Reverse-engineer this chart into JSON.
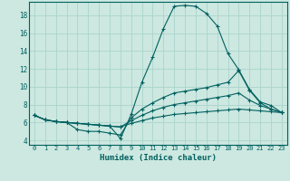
{
  "title": "",
  "xlabel": "Humidex (Indice chaleur)",
  "background_color": "#cce8e0",
  "grid_color": "#aad4cc",
  "line_color": "#006060",
  "xlim": [
    -0.5,
    23.5
  ],
  "ylim": [
    3.5,
    19.5
  ],
  "xticks": [
    0,
    1,
    2,
    3,
    4,
    5,
    6,
    7,
    8,
    9,
    10,
    11,
    12,
    13,
    14,
    15,
    16,
    17,
    18,
    19,
    20,
    21,
    22,
    23
  ],
  "yticks": [
    4,
    6,
    8,
    10,
    12,
    14,
    16,
    18
  ],
  "lines": [
    {
      "x": [
        0,
        1,
        2,
        3,
        4,
        5,
        6,
        7,
        8,
        9,
        10,
        11,
        12,
        13,
        14,
        15,
        16,
        17,
        18,
        19,
        20,
        21,
        22,
        23
      ],
      "y": [
        6.8,
        6.3,
        6.1,
        6.0,
        5.9,
        5.8,
        5.7,
        5.6,
        4.2,
        6.9,
        10.5,
        13.3,
        16.5,
        19.0,
        19.1,
        19.0,
        18.2,
        16.8,
        13.7,
        11.9,
        9.7,
        8.3,
        7.9,
        7.1
      ]
    },
    {
      "x": [
        0,
        1,
        2,
        3,
        4,
        5,
        6,
        7,
        8,
        9,
        10,
        11,
        12,
        13,
        14,
        15,
        16,
        17,
        18,
        19,
        20,
        21,
        22,
        23
      ],
      "y": [
        6.8,
        6.3,
        6.1,
        6.0,
        5.2,
        5.0,
        5.0,
        4.8,
        4.6,
        6.5,
        7.5,
        8.2,
        8.8,
        9.3,
        9.5,
        9.7,
        9.9,
        10.2,
        10.5,
        11.8,
        9.6,
        8.2,
        7.5,
        7.1
      ]
    },
    {
      "x": [
        0,
        1,
        2,
        3,
        4,
        5,
        6,
        7,
        8,
        9,
        10,
        11,
        12,
        13,
        14,
        15,
        16,
        17,
        18,
        19,
        20,
        21,
        22,
        23
      ],
      "y": [
        6.8,
        6.3,
        6.1,
        6.0,
        5.9,
        5.8,
        5.7,
        5.6,
        5.5,
        6.2,
        6.8,
        7.3,
        7.7,
        8.0,
        8.2,
        8.4,
        8.6,
        8.8,
        9.0,
        9.3,
        8.5,
        7.9,
        7.5,
        7.1
      ]
    },
    {
      "x": [
        0,
        1,
        2,
        3,
        4,
        5,
        6,
        7,
        8,
        9,
        10,
        11,
        12,
        13,
        14,
        15,
        16,
        17,
        18,
        19,
        20,
        21,
        22,
        23
      ],
      "y": [
        6.8,
        6.3,
        6.1,
        6.0,
        5.9,
        5.8,
        5.7,
        5.6,
        5.5,
        5.9,
        6.2,
        6.5,
        6.7,
        6.9,
        7.0,
        7.1,
        7.2,
        7.3,
        7.4,
        7.5,
        7.4,
        7.3,
        7.2,
        7.1
      ]
    }
  ]
}
